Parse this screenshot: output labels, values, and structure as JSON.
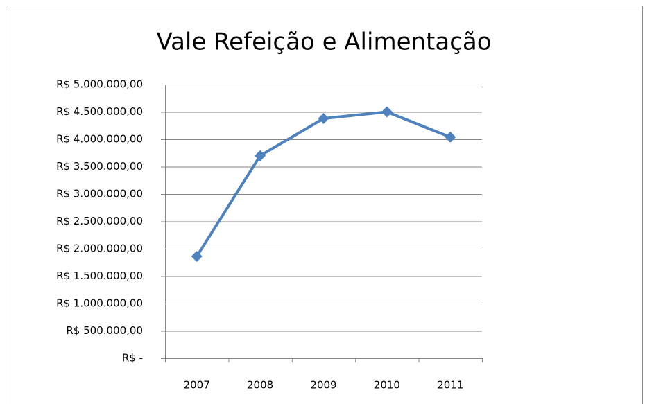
{
  "chart_data": {
    "type": "line",
    "title": "Vale Refeição e Alimentação",
    "categories": [
      "2007",
      "2008",
      "2009",
      "2010",
      "2011"
    ],
    "values": [
      1860000,
      3700000,
      4380000,
      4500000,
      4040000
    ],
    "color": "#4f81bd",
    "ylim": [
      0,
      5000000
    ],
    "yticks": [
      {
        "value": 0,
        "label": "R$ -"
      },
      {
        "value": 500000,
        "label": "R$ 500.000,00"
      },
      {
        "value": 1000000,
        "label": "R$ 1.000.000,00"
      },
      {
        "value": 1500000,
        "label": "R$ 1.500.000,00"
      },
      {
        "value": 2000000,
        "label": "R$ 2.000.000,00"
      },
      {
        "value": 2500000,
        "label": "R$ 2.500.000,00"
      },
      {
        "value": 3000000,
        "label": "R$ 3.000.000,00"
      },
      {
        "value": 3500000,
        "label": "R$ 3.500.000,00"
      },
      {
        "value": 4000000,
        "label": "R$ 4.000.000,00"
      },
      {
        "value": 4500000,
        "label": "R$ 4.500.000,00"
      },
      {
        "value": 5000000,
        "label": "R$ 5.000.000,00"
      }
    ],
    "grid": true
  }
}
